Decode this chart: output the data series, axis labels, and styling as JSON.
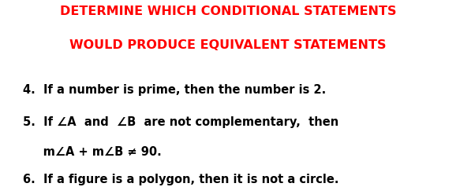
{
  "background_color": "#ffffff",
  "title_line1": "DETERMINE WHICH CONDITIONAL STATEMENTS",
  "title_line2": "WOULD PRODUCE EQUIVALENT STATEMENTS",
  "title_color": "#ff0000",
  "title_fontsize": 11.5,
  "title_fontweight": "bold",
  "body_color": "#000000",
  "body_fontsize": 10.5,
  "body_fontweight": "bold",
  "item4": "4.  If a number is prime, then the number is 2.",
  "item5a": "5.  If ∠A  and  ∠B  are not complementary,  then",
  "item5b": "     m∠A + m∠B ≠ 90.",
  "item6": "6.  If a figure is a polygon, then it is not a circle.",
  "figsize": [
    5.78,
    2.38
  ],
  "dpi": 100
}
